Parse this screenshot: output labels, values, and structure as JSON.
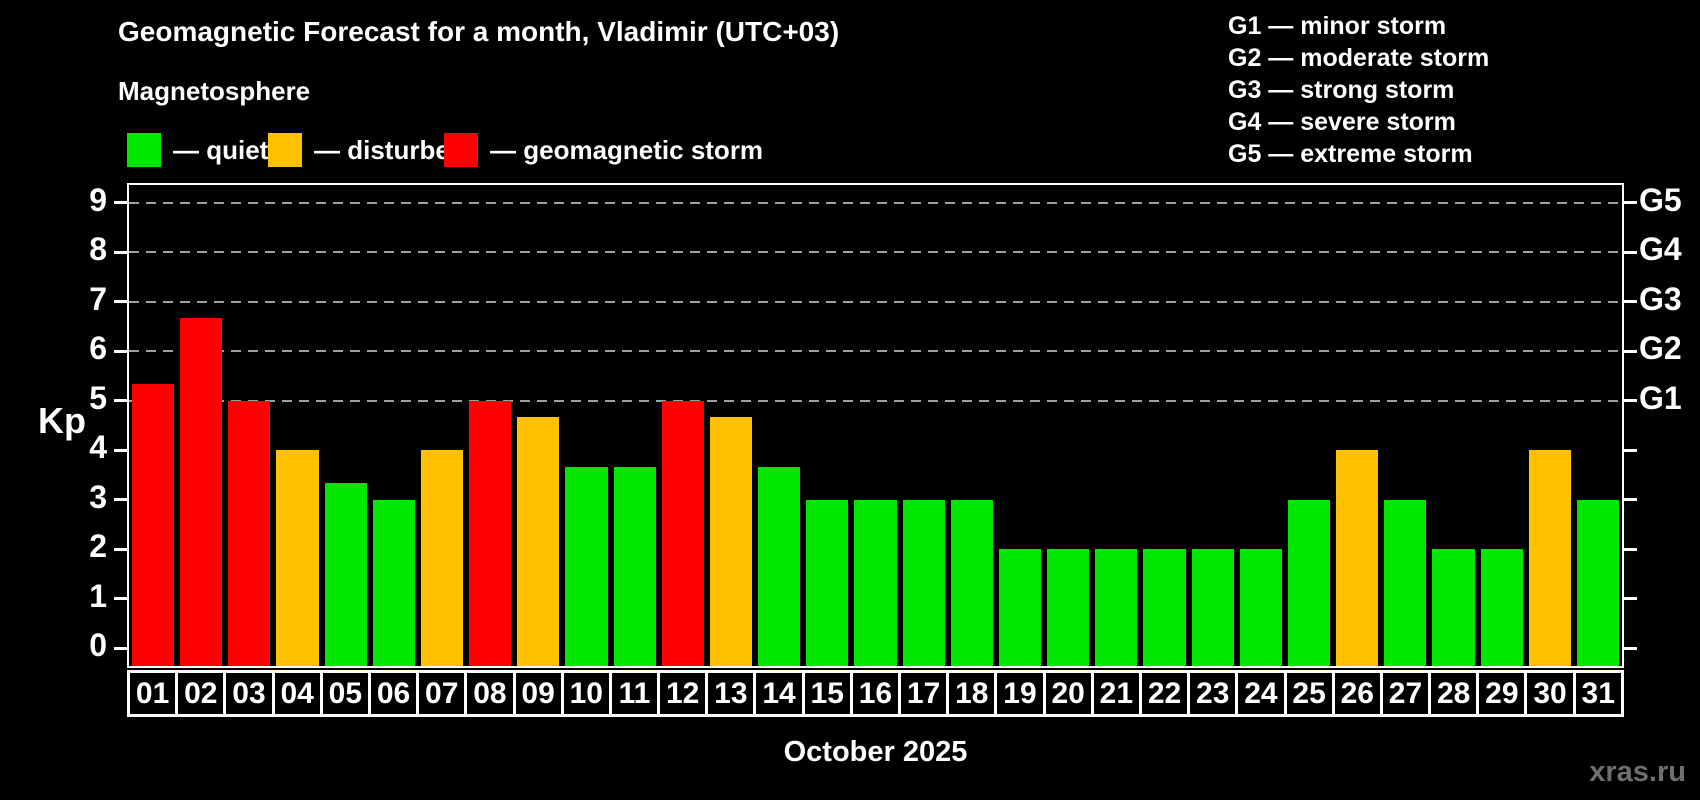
{
  "header": {
    "title": "Geomagnetic Forecast for a month, Vladimir (UTC+03)",
    "subtitle": "Magnetosphere",
    "watermark": "xras.ru"
  },
  "legend": {
    "items": [
      {
        "key": "quiet",
        "label": "— quiet",
        "color": "#00e800"
      },
      {
        "key": "disturbed",
        "label": "— disturbed",
        "color": "#ffc000"
      },
      {
        "key": "storm",
        "label": "— geomagnetic storm",
        "color": "#ff0000"
      }
    ]
  },
  "g_legend": {
    "items": [
      "G1 — minor storm",
      "G2 — moderate storm",
      "G3 — strong storm",
      "G4 — severe storm",
      "G5 — extreme storm"
    ]
  },
  "chart_data": {
    "type": "bar",
    "title": "Geomagnetic Forecast for a month, Vladimir (UTC+03)",
    "xlabel": "October 2025",
    "ylabel": "Kp",
    "ylim": [
      -0.36,
      9.36
    ],
    "yticks": [
      0,
      1,
      2,
      3,
      4,
      5,
      6,
      7,
      8,
      9
    ],
    "gridlines_at": [
      5,
      6,
      7,
      8,
      9
    ],
    "grid": "dashed-horizontal",
    "legend_position": "top",
    "right_axis": [
      {
        "kp": 5,
        "label": "G1"
      },
      {
        "kp": 6,
        "label": "G2"
      },
      {
        "kp": 7,
        "label": "G3"
      },
      {
        "kp": 8,
        "label": "G4"
      },
      {
        "kp": 9,
        "label": "G5"
      }
    ],
    "categories": [
      "01",
      "02",
      "03",
      "04",
      "05",
      "06",
      "07",
      "08",
      "09",
      "10",
      "11",
      "12",
      "13",
      "14",
      "15",
      "16",
      "17",
      "18",
      "19",
      "20",
      "21",
      "22",
      "23",
      "24",
      "25",
      "26",
      "27",
      "28",
      "29",
      "30",
      "31"
    ],
    "values": [
      5.33,
      6.67,
      5,
      4,
      3.33,
      3,
      4,
      5,
      4.67,
      3.67,
      3.67,
      5,
      4.67,
      3.67,
      3,
      3,
      3,
      3,
      2,
      2,
      2,
      2,
      2,
      2,
      3,
      4,
      3,
      2,
      2,
      4,
      3
    ],
    "statuses": [
      "storm",
      "storm",
      "storm",
      "disturbed",
      "quiet",
      "quiet",
      "disturbed",
      "storm",
      "disturbed",
      "quiet",
      "quiet",
      "storm",
      "disturbed",
      "quiet",
      "quiet",
      "quiet",
      "quiet",
      "quiet",
      "quiet",
      "quiet",
      "quiet",
      "quiet",
      "quiet",
      "quiet",
      "quiet",
      "disturbed",
      "quiet",
      "quiet",
      "quiet",
      "disturbed",
      "quiet"
    ]
  }
}
